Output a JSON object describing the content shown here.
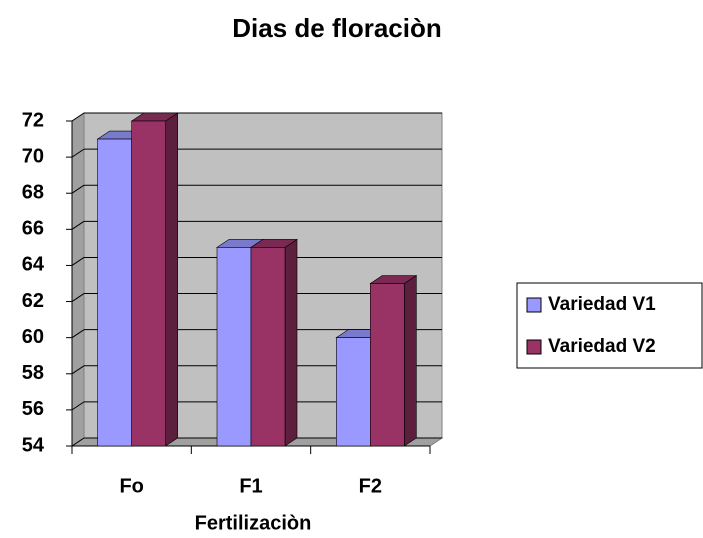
{
  "chart_data": {
    "type": "bar3d",
    "title": "Dias de floraciòn",
    "x_label": "Fertilizaciòn",
    "categories": [
      "Fo",
      "F1",
      "F2"
    ],
    "series": [
      {
        "name": "Variedad V1",
        "color": "#9999ff",
        "values": [
          71,
          65,
          60
        ]
      },
      {
        "name": "Variedad V2",
        "color": "#993366",
        "values": [
          72,
          65,
          63
        ]
      }
    ],
    "ylim": [
      54,
      72
    ],
    "yticks": [
      54,
      56,
      58,
      60,
      62,
      64,
      66,
      68,
      70,
      72
    ],
    "grid": true,
    "legend": "right"
  }
}
